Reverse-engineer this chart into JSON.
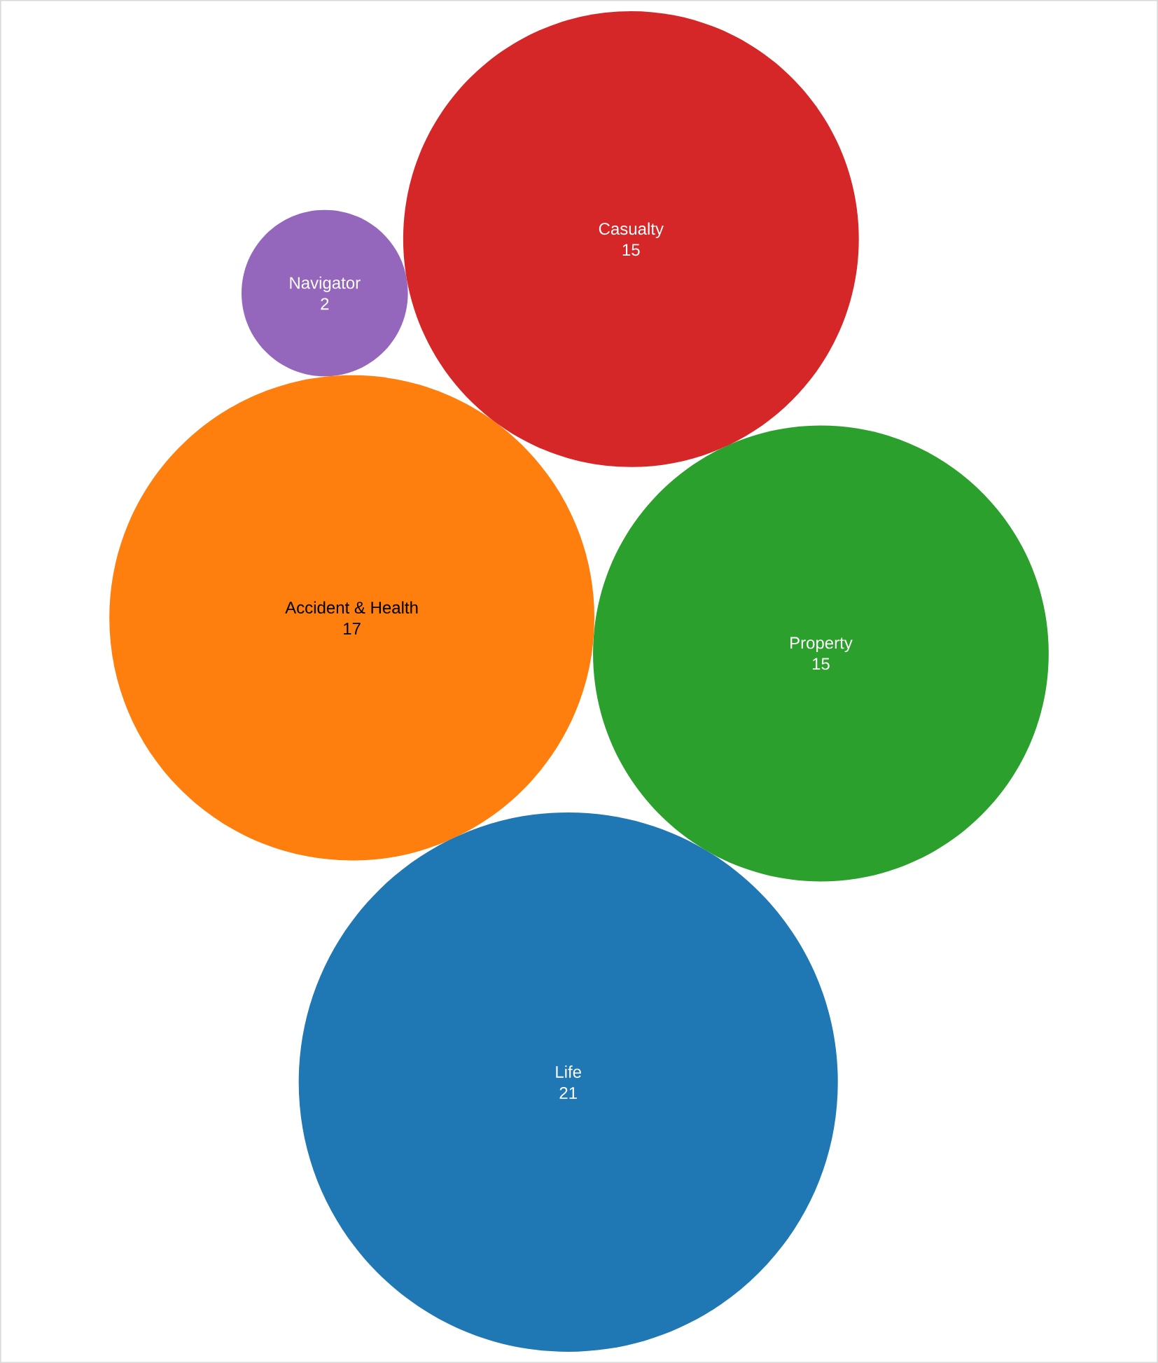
{
  "chart_data": {
    "type": "other",
    "categories": [
      "Property",
      "Navigator",
      "Accident & Health",
      "Casualty",
      "Life"
    ],
    "values": [
      15,
      2,
      17,
      15,
      21
    ],
    "colors": [
      "#2ca02c",
      "#9467bd",
      "#ff7f0e",
      "#d62728",
      "#1f77b4"
    ],
    "data_labels": true
  }
}
